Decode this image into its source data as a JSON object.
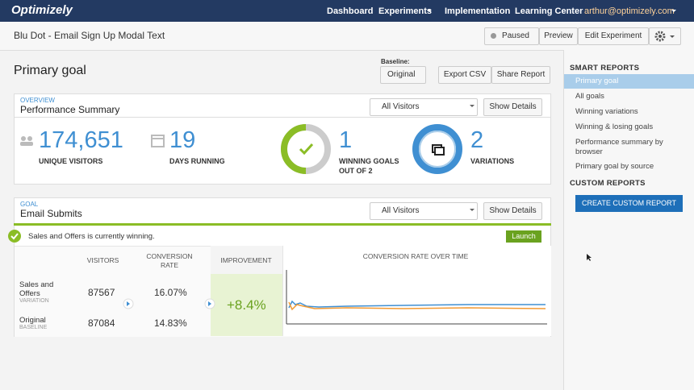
{
  "nav": {
    "logo": "Optimizely",
    "links": [
      "Dashboard",
      "Experiments",
      "Implementation",
      "Learning Center"
    ],
    "user": "arthur@optimizely.com"
  },
  "toolbar": {
    "title": "Blu Dot - Email Sign Up Modal Text",
    "status": "Paused",
    "buttons": [
      "Preview",
      "Edit Experiment"
    ]
  },
  "main": {
    "heading": "Primary goal",
    "baseline_label": "Baseline:",
    "baseline": "Original",
    "buttons": [
      "Export CSV",
      "Share Report"
    ]
  },
  "overview": {
    "kicker": "OVERVIEW",
    "title": "Performance Summary",
    "filter": "All Visitors",
    "details": "Show Details",
    "stats": [
      {
        "value": "174,651",
        "label": "UNIQUE VISITORS"
      },
      {
        "value": "19",
        "label": "DAYS RUNNING"
      },
      {
        "value": "1",
        "label": "WINNING GOALS OUT OF 2"
      },
      {
        "value": "2",
        "label": "VARIATIONS"
      }
    ]
  },
  "goal": {
    "kicker": "GOAL",
    "title": "Email Submits",
    "filter": "All Visitors",
    "details": "Show Details",
    "banner": "Sales and Offers is currently winning.",
    "launch": "Launch",
    "table": {
      "headers": [
        "VISITORS",
        "CONVERSION RATE",
        "IMPROVEMENT",
        "CONVERSION RATE OVER TIME"
      ],
      "rows": [
        {
          "name": "Sales and Offers",
          "tag": "VARIATION",
          "visitors": "87567",
          "rate": "16.07%",
          "improvement": "+8.4%"
        },
        {
          "name": "Original",
          "tag": "BASELINE",
          "visitors": "87084",
          "rate": "14.83%"
        }
      ]
    }
  },
  "sidebar": {
    "smart_title": "SMART REPORTS",
    "items": [
      "Primary goal",
      "All goals",
      "Winning variations",
      "Winning & losing goals",
      "Performance summary by browser",
      "Primary goal by source"
    ],
    "custom_title": "CUSTOM REPORTS",
    "custom_button": "CREATE CUSTOM REPORT"
  }
}
